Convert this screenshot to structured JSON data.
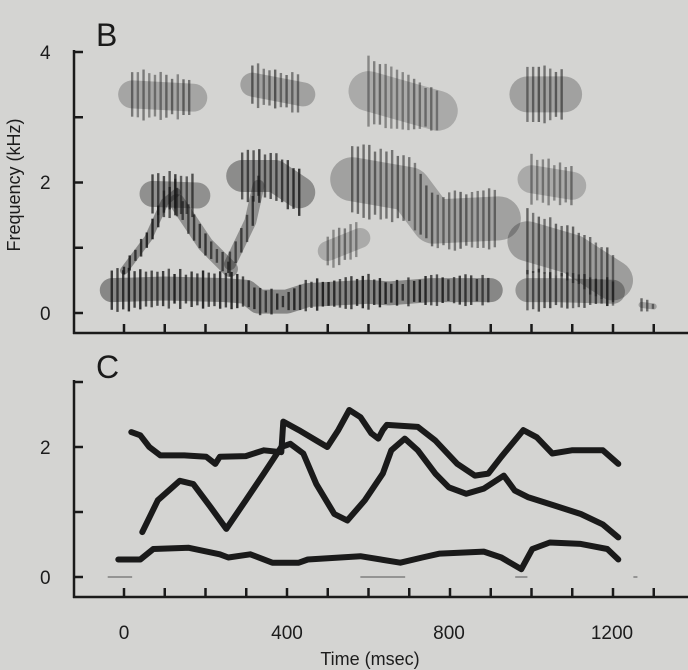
{
  "colors": {
    "background": "#d4d4d2",
    "ink": "#1a1a1a"
  },
  "chart_data": [
    {
      "panel": "B",
      "type": "heatmap",
      "kind": "spectrogram",
      "xlabel": "",
      "ylabel": "Frequency (kHz)",
      "xlim": [
        -100,
        1350
      ],
      "ylim": [
        0,
        4
      ],
      "x_ticks": [
        0,
        100,
        200,
        300,
        400,
        500,
        600,
        700,
        800,
        900,
        1000,
        1100,
        1200,
        1300
      ],
      "y_ticks": [
        0,
        1,
        2,
        3,
        4
      ],
      "y_tick_labels": [
        "0",
        "2",
        "4"
      ],
      "y_tick_label_values": [
        0,
        2,
        4
      ],
      "energy_bands": [
        {
          "intensity": 0.92,
          "points": [
            [
              -30,
              0.05,
              0.65
            ],
            [
              100,
              0.1,
              0.65
            ],
            [
              250,
              0.1,
              0.6
            ],
            [
              300,
              0.1,
              0.55
            ],
            [
              330,
              0.0,
              0.35
            ],
            [
              400,
              0.05,
              0.3
            ],
            [
              450,
              0.05,
              0.5
            ],
            [
              600,
              0.1,
              0.55
            ],
            [
              650,
              0.15,
              0.45
            ],
            [
              750,
              0.15,
              0.55
            ],
            [
              900,
              0.15,
              0.55
            ]
          ]
        },
        {
          "intensity": 0.75,
          "points": [
            [
              990,
              0.05,
              0.65
            ],
            [
              1060,
              0.1,
              0.6
            ],
            [
              1200,
              0.15,
              0.5
            ]
          ]
        },
        {
          "intensity": 0.9,
          "points": [
            [
              0,
              0.55,
              0.75
            ],
            [
              60,
              1.0,
              1.3
            ],
            [
              100,
              1.5,
              1.9
            ],
            [
              130,
              1.6,
              2.1
            ]
          ]
        },
        {
          "intensity": 0.8,
          "points": [
            [
              70,
              1.5,
              2.15
            ],
            [
              180,
              1.5,
              2.1
            ]
          ]
        },
        {
          "intensity": 0.8,
          "points": [
            [
              130,
              1.5,
              1.9
            ],
            [
              200,
              0.9,
              1.2
            ],
            [
              260,
              0.55,
              0.8
            ]
          ]
        },
        {
          "intensity": 0.8,
          "points": [
            [
              260,
              0.6,
              0.9
            ],
            [
              310,
              1.2,
              1.6
            ],
            [
              330,
              1.8,
              2.1
            ]
          ]
        },
        {
          "intensity": 0.85,
          "points": [
            [
              290,
              1.7,
              2.5
            ],
            [
              370,
              1.75,
              2.45
            ],
            [
              430,
              1.5,
              2.2
            ]
          ]
        },
        {
          "intensity": 0.5,
          "points": [
            [
              500,
              0.7,
              1.2
            ],
            [
              580,
              0.9,
              1.4
            ]
          ]
        },
        {
          "intensity": 0.6,
          "points": [
            [
              560,
              1.5,
              2.6
            ],
            [
              700,
              1.4,
              2.4
            ],
            [
              760,
              1.0,
              1.8
            ],
            [
              920,
              1.0,
              1.9
            ]
          ]
        },
        {
          "intensity": 0.55,
          "points": [
            [
              20,
              3.0,
              3.7
            ],
            [
              170,
              3.0,
              3.6
            ]
          ]
        },
        {
          "intensity": 0.6,
          "points": [
            [
              315,
              3.2,
              3.8
            ],
            [
              440,
              3.1,
              3.6
            ]
          ]
        },
        {
          "intensity": 0.5,
          "points": [
            [
              600,
              2.9,
              3.9
            ],
            [
              770,
              2.8,
              3.4
            ]
          ]
        },
        {
          "intensity": 0.6,
          "points": [
            [
              990,
              2.9,
              3.8
            ],
            [
              1080,
              3.0,
              3.7
            ]
          ]
        },
        {
          "intensity": 0.5,
          "points": [
            [
              1000,
              1.7,
              2.4
            ],
            [
              1100,
              1.7,
              2.2
            ]
          ]
        },
        {
          "intensity": 0.65,
          "points": [
            [
              990,
              0.6,
              1.6
            ],
            [
              1100,
              0.5,
              1.3
            ],
            [
              1200,
              0.1,
              0.9
            ]
          ]
        },
        {
          "intensity": 0.6,
          "points": [
            [
              1270,
              0.05,
              0.2
            ],
            [
              1300,
              0.05,
              0.15
            ]
          ]
        }
      ]
    },
    {
      "panel": "C",
      "type": "line",
      "xlabel": "Time (msec)",
      "ylabel": "",
      "xlim": [
        -100,
        1350
      ],
      "ylim": [
        0,
        3
      ],
      "x_ticks": [
        0,
        100,
        200,
        300,
        400,
        500,
        600,
        700,
        800,
        900,
        1000,
        1100,
        1200,
        1300
      ],
      "x_tick_labels": [
        "0",
        "400",
        "800",
        "1200"
      ],
      "x_tick_label_values": [
        0,
        400,
        800,
        1200
      ],
      "y_ticks": [
        0,
        1,
        2,
        3
      ],
      "y_tick_labels": [
        "0",
        "2"
      ],
      "y_tick_label_values": [
        0,
        2
      ],
      "series": [
        {
          "points": [
            [
              -14,
              0.27
            ],
            [
              40,
              0.27
            ],
            [
              72,
              0.43
            ],
            [
              159,
              0.45
            ],
            [
              235,
              0.35
            ],
            [
              256,
              0.3
            ],
            [
              310,
              0.35
            ],
            [
              364,
              0.22
            ],
            [
              429,
              0.22
            ],
            [
              451,
              0.27
            ],
            [
              580,
              0.32
            ],
            [
              678,
              0.22
            ],
            [
              732,
              0.3
            ],
            [
              775,
              0.36
            ],
            [
              883,
              0.39
            ],
            [
              926,
              0.3
            ],
            [
              975,
              0.12
            ],
            [
              1002,
              0.43
            ],
            [
              1045,
              0.53
            ],
            [
              1121,
              0.51
            ],
            [
              1186,
              0.43
            ],
            [
              1213,
              0.27
            ]
          ]
        },
        {
          "points": [
            [
              45,
              0.69
            ],
            [
              83,
              1.18
            ],
            [
              137,
              1.48
            ],
            [
              170,
              1.43
            ],
            [
              213,
              1.07
            ],
            [
              251,
              0.74
            ],
            [
              299,
              1.18
            ],
            [
              343,
              1.59
            ],
            [
              386,
              2.0
            ],
            [
              408,
              2.05
            ],
            [
              440,
              1.9
            ],
            [
              472,
              1.43
            ],
            [
              516,
              0.97
            ],
            [
              548,
              0.87
            ],
            [
              591,
              1.18
            ],
            [
              635,
              1.59
            ],
            [
              656,
              1.95
            ],
            [
              689,
              2.13
            ],
            [
              721,
              1.95
            ],
            [
              764,
              1.59
            ],
            [
              797,
              1.38
            ],
            [
              840,
              1.28
            ],
            [
              883,
              1.36
            ],
            [
              932,
              1.56
            ],
            [
              959,
              1.33
            ],
            [
              991,
              1.23
            ],
            [
              1056,
              1.1
            ],
            [
              1121,
              0.97
            ],
            [
              1175,
              0.81
            ],
            [
              1213,
              0.61
            ]
          ]
        },
        {
          "points": [
            [
              18,
              2.23
            ],
            [
              40,
              2.18
            ],
            [
              62,
              2.0
            ],
            [
              89,
              1.87
            ],
            [
              148,
              1.87
            ],
            [
              202,
              1.85
            ],
            [
              224,
              1.74
            ],
            [
              235,
              1.85
            ],
            [
              299,
              1.86
            ],
            [
              343,
              1.95
            ],
            [
              386,
              1.92
            ],
            [
              391,
              2.39
            ],
            [
              429,
              2.26
            ],
            [
              472,
              2.1
            ],
            [
              499,
              2.0
            ],
            [
              526,
              2.26
            ],
            [
              553,
              2.57
            ],
            [
              580,
              2.46
            ],
            [
              607,
              2.21
            ],
            [
              624,
              2.13
            ],
            [
              635,
              2.26
            ],
            [
              645,
              2.34
            ],
            [
              721,
              2.31
            ],
            [
              764,
              2.1
            ],
            [
              818,
              1.74
            ],
            [
              861,
              1.56
            ],
            [
              894,
              1.59
            ],
            [
              926,
              1.85
            ],
            [
              980,
              2.26
            ],
            [
              1013,
              2.15
            ],
            [
              1051,
              1.9
            ],
            [
              1099,
              1.95
            ],
            [
              1175,
              1.95
            ],
            [
              1213,
              1.74
            ]
          ]
        }
      ]
    }
  ],
  "labels": {
    "panel_b": "B",
    "panel_c": "C",
    "b_y_title": "Frequency (kHz)",
    "c_x_title": "Time (msec)",
    "b_y0": "0",
    "b_y2": "2",
    "b_y4": "4",
    "c_y0": "0",
    "c_y2": "2",
    "c_x0": "0",
    "c_x400": "400",
    "c_x800": "800",
    "c_x1200": "1200"
  }
}
